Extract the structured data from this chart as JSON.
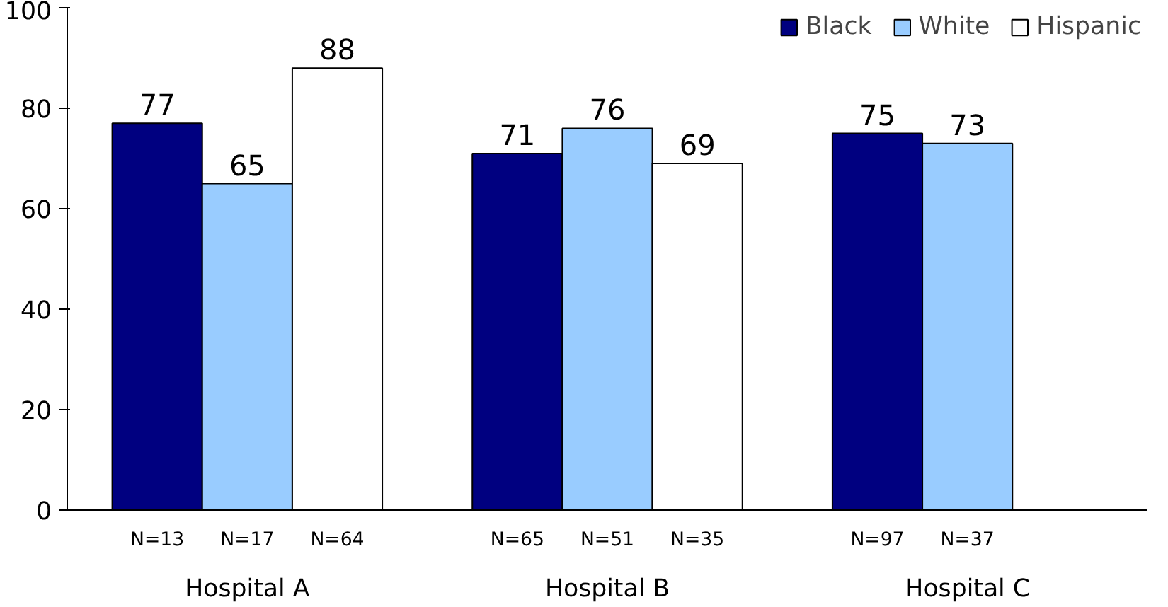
{
  "chart_data": {
    "type": "bar",
    "categories": [
      "Hospital A",
      "Hospital B",
      "Hospital C"
    ],
    "series": [
      {
        "name": "Black",
        "color": "#000080",
        "values": [
          77,
          71,
          75
        ]
      },
      {
        "name": "White",
        "color": "#99ccff",
        "values": [
          65,
          76,
          73
        ]
      },
      {
        "name": "Hispanic",
        "color": "#ffffff",
        "values": [
          88,
          69,
          null
        ]
      }
    ],
    "ylim": [
      0,
      100
    ],
    "yticks": [
      0,
      20,
      40,
      60,
      80,
      100
    ],
    "grid": false,
    "legend": "top right",
    "data_labels": true,
    "annotations": [
      "N=13",
      "N=17",
      "N=64",
      "N=65",
      "N=51",
      "N=35",
      "N=97",
      "N=37"
    ]
  }
}
